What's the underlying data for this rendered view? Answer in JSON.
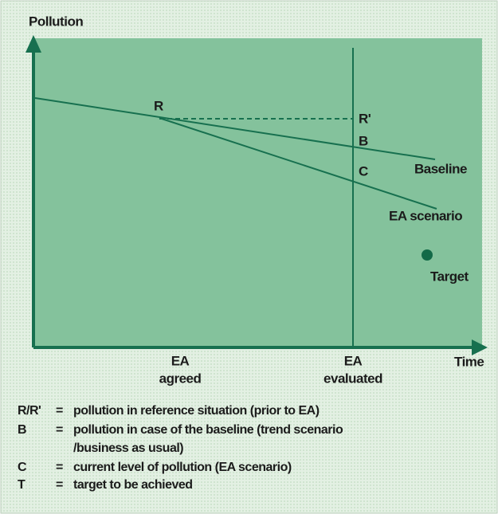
{
  "axes": {
    "y": "Pollution",
    "x": "Time"
  },
  "points": {
    "r": "R",
    "r_prime": "R'",
    "b": "B",
    "c": "C"
  },
  "lines": {
    "baseline": "Baseline",
    "scenario": "EA scenario",
    "target": "Target"
  },
  "x_labels": [
    {
      "top": "EA",
      "bottom": "agreed"
    },
    {
      "top": "EA",
      "bottom": "evaluated"
    }
  ],
  "legend": [
    {
      "key": "R/R'",
      "sign": "=",
      "lines": [
        "pollution in reference situation (prior to EA)"
      ]
    },
    {
      "key": "B",
      "sign": "=",
      "lines": [
        "pollution in case of the baseline (trend scenario",
        "/business as usual)"
      ]
    },
    {
      "key": "C",
      "sign": "=",
      "lines": [
        "current level of pollution (EA scenario)"
      ]
    },
    {
      "key": "T",
      "sign": "=",
      "lines": [
        "target to be achieved"
      ]
    }
  ]
}
